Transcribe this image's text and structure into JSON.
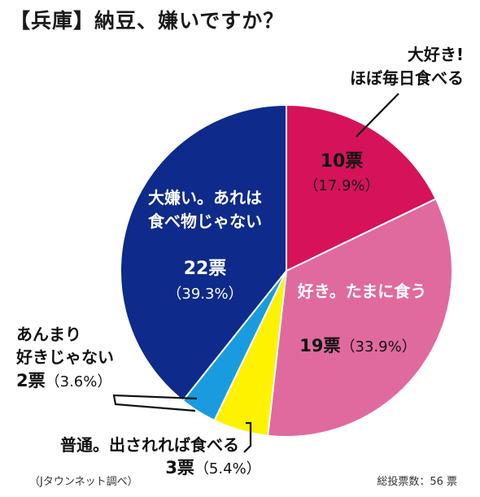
{
  "title": "【兵庫】納豆、嫌いですか？",
  "source": "（Jタウンネット調べ）",
  "total": "総投票数：56 票",
  "chart_data": {
    "type": "pie",
    "total_votes": 56,
    "slices": [
      {
        "label": [
          "大好き!",
          "ほぼ毎日食べる"
        ],
        "votes": 10,
        "votes_text": "10票",
        "pct_text": "（17.9%）",
        "percent": 17.9,
        "color": "#d6125a"
      },
      {
        "label": [
          "好き。たまに食う"
        ],
        "votes": 19,
        "votes_text": "19票",
        "pct_text": "（33.9%）",
        "percent": 33.9,
        "color": "#e06a9e"
      },
      {
        "label": [
          "普通。出されれば食べる"
        ],
        "votes": 3,
        "votes_text": "3票",
        "pct_text": "（5.4%）",
        "percent": 5.4,
        "color": "#fff200"
      },
      {
        "label": [
          "あんまり",
          "好きじゃない"
        ],
        "votes": 2,
        "votes_text": "2票",
        "pct_text": "（3.6%）",
        "percent": 3.6,
        "color": "#1a9be0"
      },
      {
        "label": [
          "大嫌い。あれは",
          "食べ物じゃない"
        ],
        "votes": 22,
        "votes_text": "22票",
        "pct_text": "（39.3%）",
        "percent": 39.3,
        "color": "#0e2a8a"
      }
    ]
  }
}
